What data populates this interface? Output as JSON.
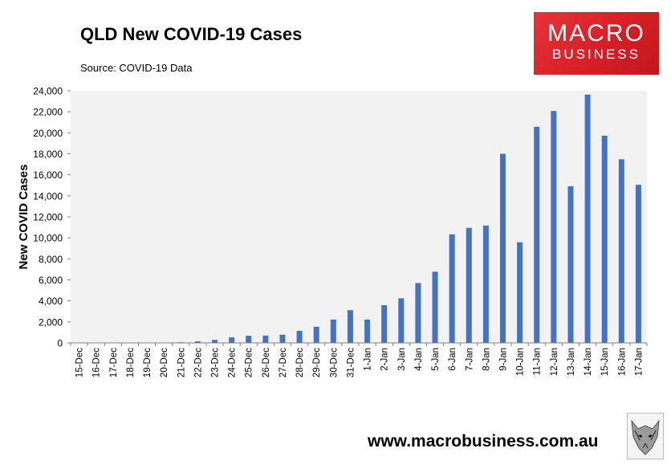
{
  "header": {
    "title": "QLD New COVID-19 Cases",
    "source": "Source: COVID-19 Data"
  },
  "logo": {
    "line1": "MACRO",
    "line2": "BUSINESS",
    "color": "#d9232a"
  },
  "footer": {
    "url": "www.macrobusiness.com.au"
  },
  "chart_data": {
    "type": "bar",
    "title": "QLD New COVID-19 Cases",
    "xlabel": "",
    "ylabel": "New COVID Cases",
    "ylim": [
      0,
      24000
    ],
    "yticks": [
      0,
      2000,
      4000,
      6000,
      8000,
      10000,
      12000,
      14000,
      16000,
      18000,
      20000,
      22000,
      24000
    ],
    "ytick_labels": [
      "0",
      "2,000",
      "4,000",
      "6,000",
      "8,000",
      "10,000",
      "12,000",
      "14,000",
      "16,000",
      "18,000",
      "20,000",
      "22,000",
      "24,000"
    ],
    "grid": false,
    "plot_background": "#f2f2f2",
    "bar_color": "#4472c4",
    "categories": [
      "15-Dec",
      "16-Dec",
      "17-Dec",
      "18-Dec",
      "19-Dec",
      "20-Dec",
      "21-Dec",
      "22-Dec",
      "23-Dec",
      "24-Dec",
      "25-Dec",
      "26-Dec",
      "27-Dec",
      "28-Dec",
      "29-Dec",
      "30-Dec",
      "31-Dec",
      "1-Jan",
      "2-Jan",
      "3-Jan",
      "4-Jan",
      "5-Jan",
      "6-Jan",
      "7-Jan",
      "8-Jan",
      "9-Jan",
      "10-Jan",
      "11-Jan",
      "12-Jan",
      "13-Jan",
      "14-Jan",
      "15-Jan",
      "16-Jan",
      "17-Jan"
    ],
    "values": [
      5,
      5,
      10,
      10,
      10,
      20,
      60,
      150,
      290,
      530,
      680,
      700,
      780,
      1150,
      1540,
      2220,
      3120,
      2220,
      3590,
      4250,
      5700,
      6780,
      10330,
      10950,
      11170,
      18000,
      9580,
      20570,
      22070,
      14910,
      23630,
      19720,
      17480,
      15050
    ]
  }
}
